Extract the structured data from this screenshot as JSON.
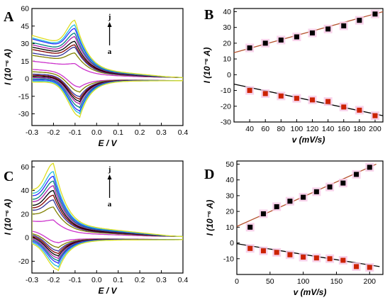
{
  "chart_data": [
    {
      "panel": "A",
      "type": "line",
      "xlabel": "E / V",
      "ylabel": "I (10⁻⁶ A)",
      "xlim": [
        -0.3,
        0.4
      ],
      "ylim": [
        -40,
        60
      ],
      "xticks": [
        -0.3,
        -0.2,
        -0.1,
        0.0,
        0.1,
        0.2,
        0.3,
        0.4
      ],
      "yticks": [
        -30,
        -15,
        0,
        15,
        30,
        45,
        60
      ],
      "annotations": {
        "top": "j",
        "bottom": "a"
      },
      "series": [
        {
          "color": "#cc33cc",
          "anodic_peak": 13,
          "cathodic_peak": -7,
          "start_upper": 15,
          "start_lower": 8
        },
        {
          "color": "#808000",
          "anodic_peak": 22,
          "cathodic_peak": -11,
          "start_upper": 20,
          "start_lower": 6
        },
        {
          "color": "#333399",
          "anodic_peak": 27,
          "cathodic_peak": -15,
          "start_upper": 22,
          "start_lower": 4
        },
        {
          "color": "#800000",
          "anodic_peak": 29,
          "cathodic_peak": -17,
          "start_upper": 25,
          "start_lower": 3
        },
        {
          "color": "#000000",
          "anodic_peak": 32,
          "cathodic_peak": -19,
          "start_upper": 27,
          "start_lower": 2
        },
        {
          "color": "#aa22aa",
          "anodic_peak": 36,
          "cathodic_peak": -21,
          "start_upper": 29,
          "start_lower": 1
        },
        {
          "color": "#008080",
          "anodic_peak": 39,
          "cathodic_peak": -24,
          "start_upper": 31,
          "start_lower": 0
        },
        {
          "color": "#2a2aff",
          "anodic_peak": 43,
          "cathodic_peak": -27,
          "start_upper": 34,
          "start_lower": -1
        },
        {
          "color": "#22bbdd",
          "anodic_peak": 46,
          "cathodic_peak": -29,
          "start_upper": 35,
          "start_lower": -2
        },
        {
          "color": "#dddd22",
          "anodic_peak": 50,
          "cathodic_peak": -32,
          "start_upper": 37,
          "start_lower": -3
        }
      ]
    },
    {
      "panel": "B",
      "type": "scatter",
      "xlabel": "v (mV/s)",
      "ylabel": "I (10⁻⁶ A)",
      "xlim": [
        20,
        210
      ],
      "ylim": [
        -30,
        42
      ],
      "xticks": [
        40,
        60,
        80,
        100,
        120,
        140,
        160,
        180,
        200
      ],
      "yticks": [
        -30,
        -20,
        -10,
        0,
        10,
        20,
        30,
        40
      ],
      "series": [
        {
          "color": "#000000",
          "x": [
            40,
            60,
            80,
            100,
            120,
            140,
            160,
            180,
            200
          ],
          "y": [
            17,
            20,
            22,
            24,
            26.5,
            29,
            31,
            34.5,
            38.5
          ],
          "fit": {
            "color": "#b5532f",
            "x": [
              20,
              210
            ],
            "y": [
              14,
              40
            ]
          }
        },
        {
          "color": "#cc2200",
          "x": [
            40,
            60,
            80,
            100,
            120,
            140,
            160,
            180,
            200
          ],
          "y": [
            -10,
            -12,
            -13.5,
            -15,
            -16,
            -17,
            -20.5,
            -22.5,
            -26
          ],
          "fit": {
            "color": "#000000",
            "x": [
              20,
              210
            ],
            "y": [
              -6,
              -26
            ]
          }
        }
      ]
    },
    {
      "panel": "C",
      "type": "line",
      "xlabel": "E / V",
      "ylabel": "I (10⁻⁶ A)",
      "xlim": [
        -0.3,
        0.4
      ],
      "ylim": [
        -30,
        65
      ],
      "xticks": [
        -0.3,
        -0.2,
        -0.1,
        0.0,
        0.1,
        0.2,
        0.3,
        0.4
      ],
      "yticks": [
        -20,
        0,
        20,
        40,
        60
      ],
      "annotations": {
        "top": "j",
        "bottom": "a"
      },
      "series": [
        {
          "color": "#cc33cc",
          "anodic_peak": 15,
          "cathodic_peak": -4,
          "start_upper": 14,
          "start_lower": 6
        },
        {
          "color": "#808000",
          "anodic_peak": 26,
          "cathodic_peak": -8,
          "start_upper": 20,
          "start_lower": 4
        },
        {
          "color": "#333399",
          "anodic_peak": 32,
          "cathodic_peak": -11,
          "start_upper": 23,
          "start_lower": 3
        },
        {
          "color": "#800000",
          "anodic_peak": 36,
          "cathodic_peak": -13,
          "start_upper": 25,
          "start_lower": 2
        },
        {
          "color": "#000000",
          "anodic_peak": 40,
          "cathodic_peak": -15,
          "start_upper": 27,
          "start_lower": 1
        },
        {
          "color": "#aa22aa",
          "anodic_peak": 44,
          "cathodic_peak": -17,
          "start_upper": 30,
          "start_lower": 0
        },
        {
          "color": "#008080",
          "anodic_peak": 48,
          "cathodic_peak": -19,
          "start_upper": 32,
          "start_lower": -1
        },
        {
          "color": "#2a2aff",
          "anodic_peak": 52,
          "cathodic_peak": -21,
          "start_upper": 35,
          "start_lower": -2
        },
        {
          "color": "#22bbdd",
          "anodic_peak": 56,
          "cathodic_peak": -24,
          "start_upper": 37,
          "start_lower": -3
        },
        {
          "color": "#dddd22",
          "anodic_peak": 63,
          "cathodic_peak": -27,
          "start_upper": 40,
          "start_lower": -4
        }
      ]
    },
    {
      "panel": "D",
      "type": "scatter",
      "xlabel": "v (mV/s)",
      "ylabel": "I (10⁻⁶ A)",
      "xlim": [
        0,
        220
      ],
      "ylim": [
        -20,
        52
      ],
      "xticks": [
        0,
        50,
        100,
        150,
        200
      ],
      "yticks": [
        -10,
        0,
        10,
        20,
        30,
        40,
        50
      ],
      "series": [
        {
          "color": "#000000",
          "x": [
            20,
            40,
            60,
            80,
            100,
            120,
            140,
            160,
            180,
            200
          ],
          "y": [
            10,
            18.5,
            23,
            26.5,
            29,
            32.5,
            35.5,
            38,
            43.5,
            48
          ],
          "fit": {
            "color": "#b5532f",
            "x": [
              0,
              210
            ],
            "y": [
              10.5,
              50
            ]
          }
        },
        {
          "color": "#cc2200",
          "x": [
            20,
            40,
            60,
            80,
            100,
            120,
            140,
            160,
            180,
            200
          ],
          "y": [
            -3.5,
            -5,
            -6,
            -7.5,
            -9,
            -9.5,
            -10,
            -11,
            -15,
            -15.5
          ],
          "fit": {
            "color": "#000000",
            "x": [
              0,
              215
            ],
            "y": [
              -0.5,
              -15
            ]
          }
        }
      ]
    }
  ]
}
